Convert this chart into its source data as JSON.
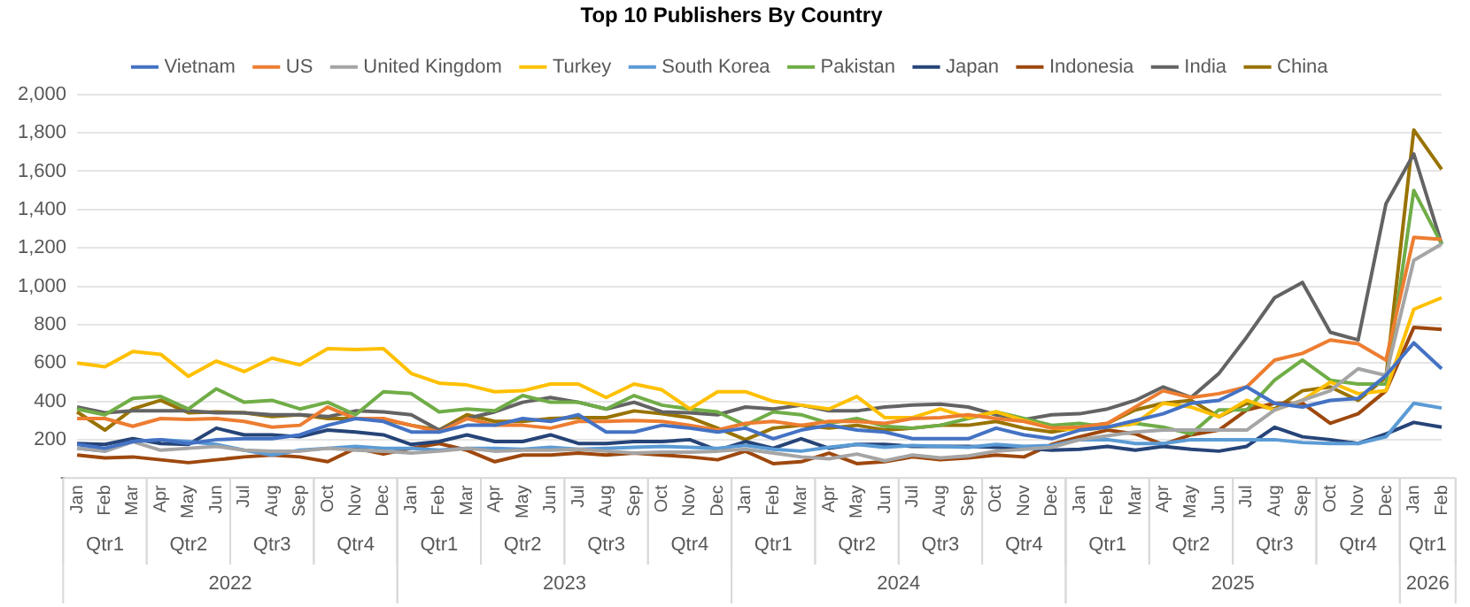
{
  "chart_data": {
    "type": "line",
    "title": "Top 10 Publishers By Country",
    "categories": [
      "Jan",
      "Feb",
      "Mar",
      "Apr",
      "May",
      "Jun",
      "Jul",
      "Aug",
      "Sep",
      "Oct",
      "Nov",
      "Dec",
      "Jan",
      "Feb",
      "Mar",
      "Apr",
      "May",
      "Jun",
      "Jul",
      "Aug",
      "Sep",
      "Oct",
      "Nov",
      "Dec",
      "Jan",
      "Feb",
      "Mar",
      "Apr",
      "May",
      "Jun",
      "Jul",
      "Aug",
      "Sep",
      "Oct",
      "Nov",
      "Dec",
      "Jan",
      "Feb",
      "Mar",
      "Apr",
      "May",
      "Jun",
      "Jul",
      "Aug",
      "Sep",
      "Oct",
      "Nov",
      "Dec",
      "Jan",
      "Feb"
    ],
    "annotations": [
      "Qtr1",
      "Qtr2",
      "Qtr3",
      "Qtr4",
      "Qtr1",
      "Qtr2",
      "Qtr3",
      "Qtr4",
      "Qtr1",
      "Qtr2",
      "Qtr3",
      "Qtr4",
      "Qtr1",
      "Qtr2",
      "Qtr3",
      "Qtr4",
      "Qtr1",
      "2022",
      "2023",
      "2024",
      "2025",
      "2026"
    ],
    "series": [
      {
        "name": "Vietnam",
        "color": "#4472c4",
        "values": [
          175,
          155,
          190,
          200,
          180,
          200,
          205,
          205,
          225,
          275,
          310,
          295,
          240,
          240,
          275,
          275,
          310,
          295,
          330,
          240,
          240,
          275,
          260,
          240,
          260,
          205,
          250,
          275,
          250,
          240,
          205,
          205,
          205,
          260,
          225,
          205,
          250,
          265,
          300,
          335,
          390,
          405,
          475,
          390,
          370,
          405,
          415,
          535,
          705,
          570
        ]
      },
      {
        "name": "US",
        "color": "#ed7d31",
        "values": [
          310,
          310,
          270,
          310,
          305,
          310,
          295,
          265,
          275,
          370,
          310,
          310,
          275,
          240,
          310,
          275,
          275,
          260,
          295,
          295,
          300,
          295,
          275,
          250,
          285,
          295,
          275,
          295,
          295,
          285,
          310,
          315,
          330,
          310,
          295,
          260,
          265,
          285,
          370,
          455,
          420,
          440,
          475,
          615,
          650,
          720,
          700,
          615,
          1255,
          1245
        ]
      },
      {
        "name": "United Kingdom",
        "color": "#a5a5a5",
        "values": [
          155,
          140,
          190,
          145,
          155,
          165,
          145,
          140,
          140,
          155,
          145,
          140,
          130,
          140,
          155,
          140,
          145,
          145,
          150,
          140,
          130,
          135,
          135,
          140,
          150,
          130,
          110,
          100,
          125,
          90,
          120,
          105,
          115,
          140,
          150,
          160,
          200,
          220,
          240,
          250,
          250,
          250,
          250,
          355,
          405,
          455,
          570,
          535,
          1135,
          1220
        ]
      },
      {
        "name": "Turkey",
        "color": "#ffc000",
        "values": [
          600,
          580,
          660,
          645,
          530,
          610,
          555,
          625,
          590,
          675,
          670,
          675,
          545,
          495,
          485,
          450,
          455,
          490,
          490,
          420,
          490,
          460,
          360,
          450,
          450,
          400,
          380,
          360,
          425,
          315,
          315,
          360,
          315,
          345,
          300,
          260,
          250,
          265,
          285,
          390,
          370,
          320,
          405,
          355,
          405,
          500,
          440,
          455,
          880,
          940
        ]
      },
      {
        "name": "South Korea",
        "color": "#5b9bd5",
        "values": [
          155,
          140,
          190,
          200,
          190,
          175,
          145,
          120,
          145,
          155,
          165,
          155,
          155,
          145,
          155,
          155,
          150,
          160,
          150,
          155,
          160,
          165,
          160,
          155,
          170,
          150,
          140,
          160,
          175,
          160,
          170,
          165,
          160,
          175,
          165,
          170,
          200,
          200,
          180,
          180,
          200,
          200,
          200,
          200,
          185,
          180,
          180,
          215,
          390,
          365
        ]
      },
      {
        "name": "Pakistan",
        "color": "#70ad47",
        "values": [
          360,
          330,
          415,
          425,
          360,
          465,
          395,
          405,
          360,
          395,
          330,
          450,
          440,
          345,
          360,
          350,
          430,
          395,
          395,
          360,
          430,
          380,
          360,
          345,
          275,
          345,
          330,
          285,
          310,
          270,
          260,
          275,
          310,
          345,
          310,
          275,
          285,
          265,
          285,
          265,
          230,
          355,
          355,
          510,
          615,
          510,
          490,
          490,
          1500,
          1220
        ]
      },
      {
        "name": "Japan",
        "color": "#264478",
        "values": [
          180,
          175,
          205,
          180,
          175,
          260,
          225,
          225,
          215,
          250,
          240,
          225,
          175,
          190,
          225,
          190,
          190,
          225,
          180,
          180,
          190,
          190,
          200,
          145,
          190,
          155,
          205,
          155,
          175,
          175,
          165,
          165,
          165,
          160,
          155,
          145,
          150,
          165,
          145,
          165,
          150,
          140,
          165,
          265,
          215,
          200,
          180,
          230,
          290,
          265
        ]
      },
      {
        "name": "Indonesia",
        "color": "#9e480e",
        "values": [
          120,
          105,
          110,
          95,
          80,
          95,
          110,
          120,
          110,
          85,
          155,
          125,
          155,
          180,
          145,
          85,
          120,
          120,
          130,
          120,
          130,
          120,
          110,
          95,
          140,
          75,
          85,
          130,
          75,
          85,
          110,
          95,
          105,
          120,
          110,
          175,
          215,
          250,
          230,
          175,
          225,
          250,
          355,
          390,
          390,
          285,
          335,
          455,
          785,
          775
        ]
      },
      {
        "name": "India",
        "color": "#636363",
        "values": [
          370,
          340,
          350,
          350,
          350,
          340,
          340,
          330,
          330,
          320,
          350,
          345,
          330,
          250,
          310,
          345,
          395,
          420,
          395,
          360,
          395,
          345,
          340,
          330,
          370,
          360,
          380,
          350,
          350,
          370,
          380,
          385,
          370,
          330,
          305,
          330,
          335,
          360,
          405,
          475,
          420,
          545,
          735,
          940,
          1020,
          760,
          720,
          1430,
          1690,
          1220
        ]
      },
      {
        "name": "China",
        "color": "#997300",
        "values": [
          345,
          250,
          360,
          405,
          340,
          345,
          340,
          320,
          330,
          310,
          310,
          305,
          275,
          250,
          330,
          295,
          295,
          310,
          315,
          315,
          350,
          335,
          315,
          260,
          200,
          260,
          275,
          260,
          275,
          250,
          260,
          275,
          275,
          295,
          260,
          240,
          265,
          285,
          355,
          390,
          405,
          320,
          390,
          360,
          455,
          475,
          405,
          525,
          1815,
          1610
        ]
      }
    ],
    "ylim": [
      0,
      2000
    ],
    "yticks": [
      {
        "value": 0,
        "label": "-"
      },
      200,
      400,
      600,
      800,
      {
        "value": 1000,
        "label": "1,000"
      },
      {
        "value": 1200,
        "label": "1,200"
      },
      {
        "value": 1400,
        "label": "1,400"
      },
      {
        "value": 1600,
        "label": "1,600"
      },
      {
        "value": 1800,
        "label": "1,800"
      },
      {
        "value": 2000,
        "label": "2,000"
      }
    ],
    "grid": "y",
    "legend": "top",
    "marker": "none",
    "line_style": "solid"
  }
}
